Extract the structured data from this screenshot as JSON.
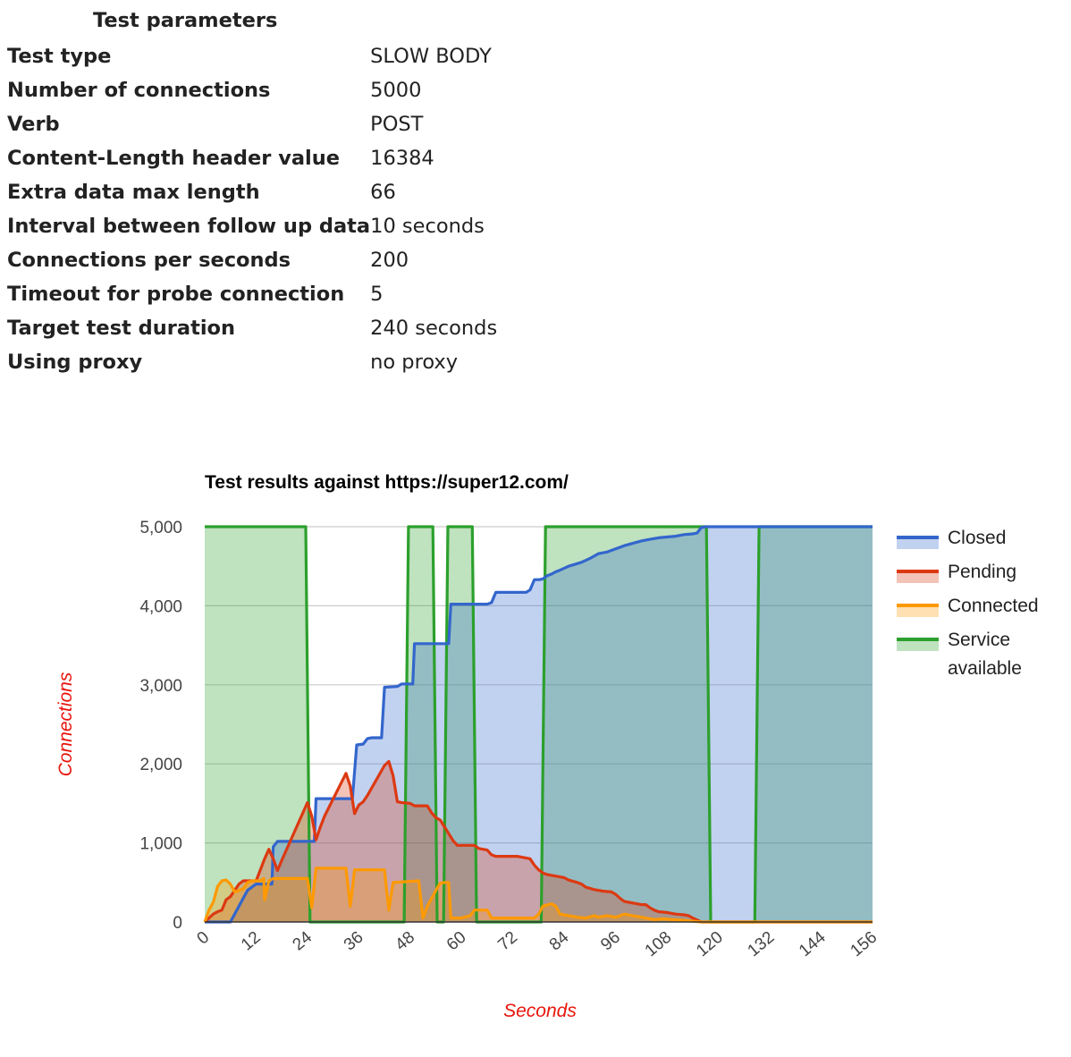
{
  "params": {
    "heading": "Test parameters",
    "rows": [
      {
        "key": "Test type",
        "value": "SLOW BODY"
      },
      {
        "key": "Number of connections",
        "value": "5000"
      },
      {
        "key": "Verb",
        "value": "POST"
      },
      {
        "key": "Content-Length header value",
        "value": "16384"
      },
      {
        "key": "Extra data max length",
        "value": "66"
      },
      {
        "key": "Interval between follow up data",
        "value": "10 seconds"
      },
      {
        "key": "Connections per seconds",
        "value": "200"
      },
      {
        "key": "Timeout for probe connection",
        "value": "5"
      },
      {
        "key": "Target test duration",
        "value": "240 seconds"
      },
      {
        "key": "Using proxy",
        "value": "no proxy"
      }
    ]
  },
  "chart_data": {
    "type": "area",
    "title": "Test results against https://super12.com/",
    "xlabel": "Seconds",
    "ylabel": "Connections",
    "xlim": [
      0,
      156
    ],
    "ylim": [
      0,
      5000
    ],
    "x_ticks": [
      "0",
      "12",
      "24",
      "36",
      "48",
      "60",
      "72",
      "84",
      "96",
      "108",
      "120",
      "132",
      "144",
      "156"
    ],
    "y_ticks": [
      "0",
      "1,000",
      "2,000",
      "3,000",
      "4,000",
      "5,000"
    ],
    "grid": true,
    "legend_position": "right",
    "colors": {
      "title": "#000000",
      "axis_title": "#e8150d",
      "tick": "#444444",
      "grid": "#cccccc",
      "axis": "#333333"
    },
    "series": [
      {
        "name": "Service available",
        "color": "#2ca02c",
        "fill": "#2ca02c",
        "fill_opacity": 0.3,
        "points": [
          [
            0,
            5000
          ],
          [
            23.6,
            5000
          ],
          [
            24.6,
            0
          ],
          [
            46.6,
            0
          ],
          [
            47.6,
            5000
          ],
          [
            53.3,
            5000
          ],
          [
            54.3,
            0
          ],
          [
            55.8,
            0
          ],
          [
            56.8,
            5000
          ],
          [
            62.5,
            5000
          ],
          [
            63.5,
            0
          ],
          [
            78.6,
            0
          ],
          [
            79.6,
            5000
          ],
          [
            117.2,
            5000
          ],
          [
            118.2,
            0
          ],
          [
            128.5,
            0
          ],
          [
            129.5,
            5000
          ],
          [
            156,
            5000
          ]
        ]
      },
      {
        "name": "Closed",
        "color": "#3366cc",
        "fill": "#3366cc",
        "fill_opacity": 0.3,
        "points": [
          [
            0,
            0
          ],
          [
            6,
            0
          ],
          [
            8,
            200
          ],
          [
            10,
            400
          ],
          [
            12,
            480
          ],
          [
            15,
            480
          ],
          [
            15.7,
            480
          ],
          [
            16,
            950
          ],
          [
            17,
            1020
          ],
          [
            24,
            1020
          ],
          [
            25.6,
            1020
          ],
          [
            26,
            1560
          ],
          [
            34.5,
            1560
          ],
          [
            35.5,
            2240
          ],
          [
            37,
            2250
          ],
          [
            38,
            2320
          ],
          [
            39,
            2330
          ],
          [
            41.3,
            2330
          ],
          [
            42,
            2970
          ],
          [
            45,
            2980
          ],
          [
            46,
            3010
          ],
          [
            48.6,
            3010
          ],
          [
            49,
            3520
          ],
          [
            57,
            3520
          ],
          [
            57.5,
            4020
          ],
          [
            66,
            4020
          ],
          [
            67,
            4040
          ],
          [
            68,
            4170
          ],
          [
            74.8,
            4170
          ],
          [
            75.1,
            4170
          ],
          [
            76,
            4200
          ],
          [
            77,
            4330
          ],
          [
            78.2,
            4330
          ],
          [
            79,
            4340
          ],
          [
            80,
            4380
          ],
          [
            81,
            4400
          ],
          [
            82,
            4430
          ],
          [
            83,
            4450
          ],
          [
            85,
            4500
          ],
          [
            88,
            4550
          ],
          [
            90,
            4600
          ],
          [
            92,
            4660
          ],
          [
            94,
            4680
          ],
          [
            96,
            4720
          ],
          [
            98,
            4760
          ],
          [
            100,
            4790
          ],
          [
            102,
            4820
          ],
          [
            104,
            4840
          ],
          [
            106,
            4860
          ],
          [
            108,
            4870
          ],
          [
            110,
            4880
          ],
          [
            112,
            4900
          ],
          [
            114,
            4910
          ],
          [
            115,
            4920
          ],
          [
            116,
            4990
          ],
          [
            117,
            5000
          ],
          [
            156,
            5000
          ]
        ]
      },
      {
        "name": "Pending",
        "color": "#dc3912",
        "fill": "#dc3912",
        "fill_opacity": 0.3,
        "points": [
          [
            0,
            0
          ],
          [
            1,
            50
          ],
          [
            2,
            100
          ],
          [
            3,
            130
          ],
          [
            4,
            150
          ],
          [
            5,
            280
          ],
          [
            6,
            320
          ],
          [
            8,
            480
          ],
          [
            9,
            520
          ],
          [
            12,
            520
          ],
          [
            14,
            800
          ],
          [
            15,
            920
          ],
          [
            16,
            800
          ],
          [
            17,
            650
          ],
          [
            18,
            780
          ],
          [
            24,
            1510
          ],
          [
            25,
            1340
          ],
          [
            26,
            1040
          ],
          [
            27,
            1200
          ],
          [
            28,
            1340
          ],
          [
            33,
            1880
          ],
          [
            34,
            1720
          ],
          [
            35,
            1370
          ],
          [
            36,
            1480
          ],
          [
            37,
            1520
          ],
          [
            38,
            1600
          ],
          [
            42,
            1980
          ],
          [
            43,
            2030
          ],
          [
            44,
            1850
          ],
          [
            45,
            1520
          ],
          [
            46,
            1510
          ],
          [
            48,
            1500
          ],
          [
            49,
            1470
          ],
          [
            52,
            1470
          ],
          [
            53,
            1380
          ],
          [
            54,
            1320
          ],
          [
            55,
            1290
          ],
          [
            58,
            1030
          ],
          [
            59,
            970
          ],
          [
            63,
            970
          ],
          [
            64,
            930
          ],
          [
            66,
            910
          ],
          [
            67,
            850
          ],
          [
            68,
            830
          ],
          [
            73,
            830
          ],
          [
            76,
            800
          ],
          [
            77,
            720
          ],
          [
            78,
            660
          ],
          [
            79,
            620
          ],
          [
            80,
            600
          ],
          [
            82,
            580
          ],
          [
            84,
            560
          ],
          [
            85,
            530
          ],
          [
            87,
            500
          ],
          [
            88,
            480
          ],
          [
            89,
            440
          ],
          [
            91,
            410
          ],
          [
            93,
            390
          ],
          [
            95,
            380
          ],
          [
            96,
            350
          ],
          [
            97,
            300
          ],
          [
            98,
            260
          ],
          [
            100,
            240
          ],
          [
            102,
            220
          ],
          [
            103,
            220
          ],
          [
            104,
            180
          ],
          [
            105,
            150
          ],
          [
            106,
            130
          ],
          [
            108,
            120
          ],
          [
            110,
            100
          ],
          [
            112,
            90
          ],
          [
            113,
            80
          ],
          [
            114,
            50
          ],
          [
            116,
            0
          ],
          [
            156,
            0
          ]
        ]
      },
      {
        "name": "Connected",
        "color": "#ff9900",
        "fill": "#ff9900",
        "fill_opacity": 0.3,
        "points": [
          [
            0,
            0
          ],
          [
            1,
            150
          ],
          [
            2,
            250
          ],
          [
            3,
            450
          ],
          [
            4,
            520
          ],
          [
            5,
            530
          ],
          [
            6,
            480
          ],
          [
            7,
            380
          ],
          [
            8,
            400
          ],
          [
            9,
            420
          ],
          [
            10,
            500
          ],
          [
            11,
            520
          ],
          [
            13,
            520
          ],
          [
            13.8,
            550
          ],
          [
            14,
            280
          ],
          [
            15,
            520
          ],
          [
            16,
            550
          ],
          [
            24,
            550
          ],
          [
            25,
            180
          ],
          [
            26,
            680
          ],
          [
            33,
            680
          ],
          [
            34,
            200
          ],
          [
            35,
            660
          ],
          [
            42,
            660
          ],
          [
            43,
            150
          ],
          [
            44,
            500
          ],
          [
            50,
            520
          ],
          [
            51,
            50
          ],
          [
            52,
            200
          ],
          [
            53,
            300
          ],
          [
            54,
            400
          ],
          [
            55,
            490
          ],
          [
            56,
            500
          ],
          [
            57,
            500
          ],
          [
            57.5,
            50
          ],
          [
            60,
            50
          ],
          [
            62,
            80
          ],
          [
            63,
            150
          ],
          [
            66,
            150
          ],
          [
            67,
            50
          ],
          [
            77,
            50
          ],
          [
            78,
            100
          ],
          [
            79,
            200
          ],
          [
            81,
            230
          ],
          [
            82,
            200
          ],
          [
            83,
            100
          ],
          [
            85,
            80
          ],
          [
            87,
            60
          ],
          [
            89,
            50
          ],
          [
            91,
            80
          ],
          [
            92,
            60
          ],
          [
            94,
            80
          ],
          [
            96,
            60
          ],
          [
            98,
            100
          ],
          [
            100,
            80
          ],
          [
            103,
            50
          ],
          [
            105,
            30
          ],
          [
            107,
            40
          ],
          [
            109,
            30
          ],
          [
            112,
            20
          ],
          [
            114,
            10
          ],
          [
            116,
            0
          ],
          [
            156,
            0
          ]
        ]
      }
    ]
  }
}
